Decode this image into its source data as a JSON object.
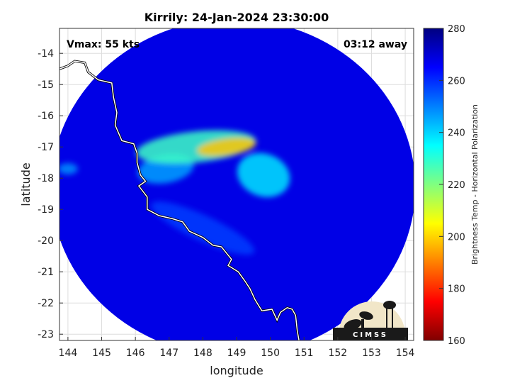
{
  "chart_data": {
    "type": "heatmap",
    "title": "Kirrily: 24-Jan-2024 23:30:00",
    "xlabel": "longitude",
    "ylabel": "latitude",
    "xlim": [
      143.75,
      154.25
    ],
    "ylim": [
      -23.2,
      -13.2
    ],
    "x_ticks": [
      "144",
      "145",
      "146",
      "147",
      "148",
      "149",
      "150",
      "151",
      "152",
      "153",
      "154"
    ],
    "y_ticks": [
      "-14",
      "-15",
      "-16",
      "-17",
      "-18",
      "-19",
      "-20",
      "-21",
      "-22",
      "-23"
    ],
    "grid": true,
    "annotations": {
      "vmax": "Vmax: 55 kts",
      "away": "03:12 away"
    },
    "colorbar": {
      "label": "Brightness Temp - Horizontal Polarization",
      "range": [
        160,
        280
      ],
      "ticks": [
        "160",
        "180",
        "200",
        "220",
        "240",
        "260",
        "280"
      ],
      "colormap": "jet",
      "colors": [
        "#800000",
        "#ff0000",
        "#ff8000",
        "#ffff00",
        "#80ff80",
        "#00ffff",
        "#0080ff",
        "#0000ff",
        "#000080"
      ]
    },
    "swath": {
      "center": [
        148.9,
        -18.3
      ],
      "radius_deg": 5.4,
      "background_temp": 268
    },
    "storm_features": [
      {
        "name": "eyewall-core",
        "lon": 148.7,
        "lat": -17.0,
        "temp": 198
      },
      {
        "name": "northern-band",
        "lon": 147.8,
        "lat": -17.0,
        "temp": 228
      },
      {
        "name": "eastern-band",
        "lon": 149.8,
        "lat": -17.9,
        "temp": 238
      },
      {
        "name": "outer-band-west",
        "lon": 146.9,
        "lat": -17.7,
        "temp": 246
      },
      {
        "name": "coastal-band",
        "lon": 148.0,
        "lat": -19.6,
        "temp": 258
      },
      {
        "name": "isolated-cell",
        "lon": 144.0,
        "lat": -17.7,
        "temp": 248
      }
    ],
    "coastline": [
      [
        143.75,
        -14.5
      ],
      [
        144.0,
        -14.4
      ],
      [
        144.2,
        -14.25
      ],
      [
        144.5,
        -14.3
      ],
      [
        144.6,
        -14.6
      ],
      [
        144.9,
        -14.85
      ],
      [
        145.3,
        -14.95
      ],
      [
        145.35,
        -15.4
      ],
      [
        145.45,
        -15.9
      ],
      [
        145.4,
        -16.3
      ],
      [
        145.6,
        -16.8
      ],
      [
        145.95,
        -16.9
      ],
      [
        146.05,
        -17.2
      ],
      [
        146.05,
        -17.5
      ],
      [
        146.15,
        -17.9
      ],
      [
        146.3,
        -18.1
      ],
      [
        146.1,
        -18.25
      ],
      [
        146.35,
        -18.6
      ],
      [
        146.35,
        -19.0
      ],
      [
        146.7,
        -19.2
      ],
      [
        147.1,
        -19.3
      ],
      [
        147.4,
        -19.4
      ],
      [
        147.6,
        -19.7
      ],
      [
        148.0,
        -19.9
      ],
      [
        148.3,
        -20.15
      ],
      [
        148.55,
        -20.2
      ],
      [
        148.7,
        -20.4
      ],
      [
        148.85,
        -20.6
      ],
      [
        148.75,
        -20.8
      ],
      [
        149.05,
        -21.0
      ],
      [
        149.25,
        -21.3
      ],
      [
        149.4,
        -21.55
      ],
      [
        149.55,
        -21.9
      ],
      [
        149.75,
        -22.25
      ],
      [
        150.05,
        -22.2
      ],
      [
        150.2,
        -22.55
      ],
      [
        150.3,
        -22.3
      ],
      [
        150.5,
        -22.15
      ],
      [
        150.65,
        -22.2
      ],
      [
        150.75,
        -22.4
      ],
      [
        150.8,
        -22.9
      ],
      [
        150.85,
        -23.2
      ]
    ],
    "logo": {
      "text": "CIMSS"
    }
  }
}
